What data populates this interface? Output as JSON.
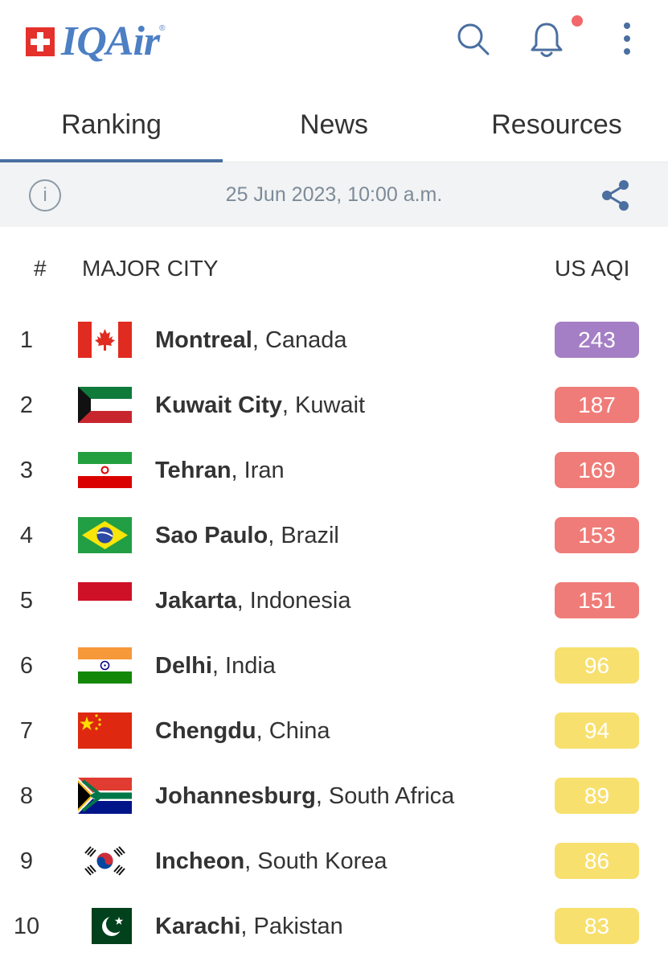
{
  "header": {
    "logo_text": "IQAir",
    "logo_reg": "®"
  },
  "tabs": [
    {
      "label": "Ranking",
      "active": true
    },
    {
      "label": "News",
      "active": false
    },
    {
      "label": "Resources",
      "active": false
    }
  ],
  "info_bar": {
    "date": "25 Jun 2023, 10:00 a.m."
  },
  "columns": {
    "rank": "#",
    "city": "MAJOR CITY",
    "aqi": "US AQI"
  },
  "aqi_colors": {
    "very_unhealthy": "#a57fc5",
    "unhealthy": "#ef7c78",
    "moderate": "#f7e06e"
  },
  "rows": [
    {
      "rank": "1",
      "city": "Montreal",
      "country": ", Canada",
      "aqi": "243",
      "level": "very_unhealthy",
      "flag": "canada"
    },
    {
      "rank": "2",
      "city": "Kuwait City",
      "country": ", Kuwait",
      "aqi": "187",
      "level": "unhealthy",
      "flag": "kuwait"
    },
    {
      "rank": "3",
      "city": "Tehran",
      "country": ", Iran",
      "aqi": "169",
      "level": "unhealthy",
      "flag": "iran"
    },
    {
      "rank": "4",
      "city": "Sao Paulo",
      "country": ", Brazil",
      "aqi": "153",
      "level": "unhealthy",
      "flag": "brazil"
    },
    {
      "rank": "5",
      "city": "Jakarta",
      "country": ", Indonesia",
      "aqi": "151",
      "level": "unhealthy",
      "flag": "indonesia"
    },
    {
      "rank": "6",
      "city": "Delhi",
      "country": ", India",
      "aqi": "96",
      "level": "moderate",
      "flag": "india"
    },
    {
      "rank": "7",
      "city": "Chengdu",
      "country": ", China",
      "aqi": "94",
      "level": "moderate",
      "flag": "china"
    },
    {
      "rank": "8",
      "city": "Johannesburg",
      "country": ", South Africa",
      "aqi": "89",
      "level": "moderate",
      "flag": "south-africa"
    },
    {
      "rank": "9",
      "city": "Incheon",
      "country": ", South Korea",
      "aqi": "86",
      "level": "moderate",
      "flag": "south-korea"
    },
    {
      "rank": "10",
      "city": "Karachi",
      "country": ", Pakistan",
      "aqi": "83",
      "level": "moderate",
      "flag": "pakistan"
    }
  ]
}
